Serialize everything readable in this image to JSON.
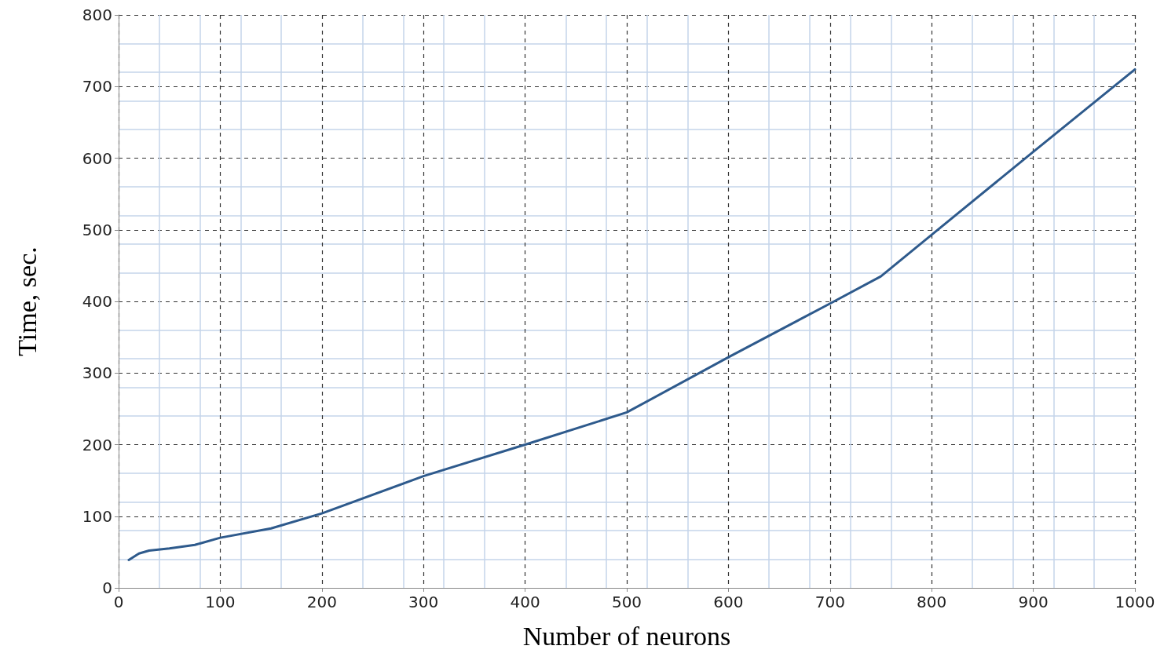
{
  "chart_data": {
    "type": "line",
    "xlabel": "Number of neurons",
    "ylabel": "Time, sec.",
    "x": [
      10,
      20,
      30,
      50,
      75,
      100,
      150,
      200,
      300,
      400,
      500,
      600,
      700,
      750,
      800,
      900,
      1000
    ],
    "series": [
      {
        "color": "#2e5a8c",
        "values": [
          39,
          48,
          52,
          55,
          60,
          70,
          83,
          104,
          156,
          200,
          245,
          322,
          397,
          435,
          493,
          609,
          724
        ]
      }
    ],
    "xlim": [
      0,
      1000
    ],
    "xticks": [
      0,
      100,
      200,
      300,
      400,
      500,
      600,
      700,
      800,
      900,
      1000
    ],
    "ylim": [
      0,
      800
    ],
    "yticks": [
      0,
      100,
      200,
      300,
      400,
      500,
      600,
      700,
      800
    ],
    "grid": true,
    "marker": "none",
    "line_style": "solid"
  }
}
